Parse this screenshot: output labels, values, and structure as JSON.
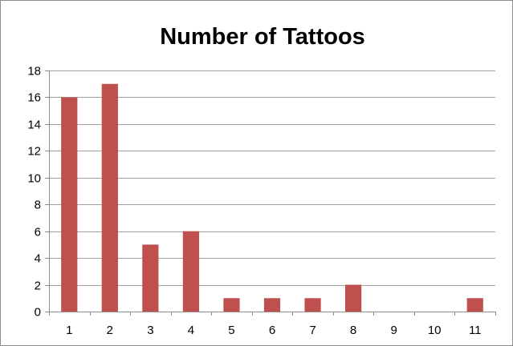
{
  "chart_data": {
    "type": "bar",
    "title": "Number of Tattoos",
    "xlabel": "",
    "ylabel": "",
    "categories": [
      "1",
      "2",
      "3",
      "4",
      "5",
      "6",
      "7",
      "8",
      "9",
      "10",
      "11"
    ],
    "values": [
      16,
      17,
      5,
      6,
      1,
      1,
      1,
      2,
      0,
      0,
      1
    ],
    "ylim": [
      0,
      18
    ],
    "yticks": [
      "0",
      "2",
      "4",
      "6",
      "8",
      "10",
      "12",
      "14",
      "16",
      "18"
    ],
    "grid": true,
    "legend": "none",
    "bar_color": "#c0504d",
    "grid_color": "#a0a0a0",
    "axis_color": "#8c8c8c"
  }
}
